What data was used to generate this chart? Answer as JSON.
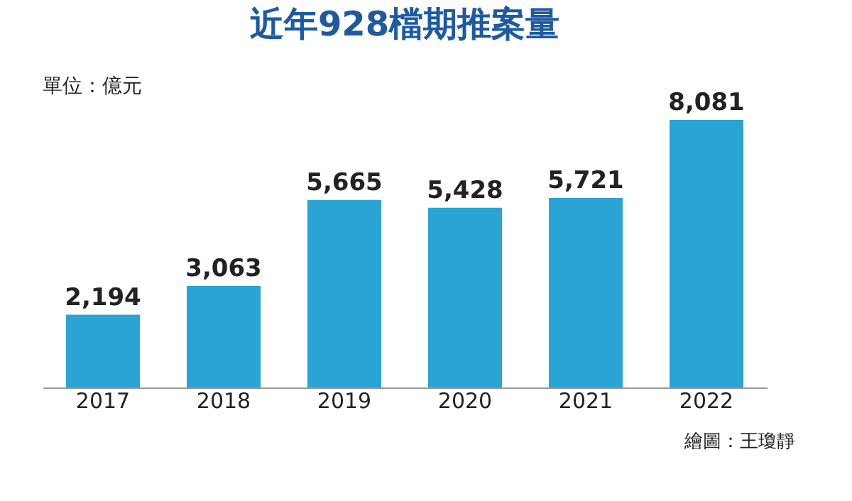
{
  "chart_data": {
    "type": "bar",
    "title": "近年928檔期推案量",
    "subtitle": "單位：億元",
    "categories": [
      "2017",
      "2018",
      "2019",
      "2020",
      "2021",
      "2022"
    ],
    "values": [
      2194,
      3063,
      5665,
      5428,
      5721,
      8081
    ],
    "value_labels": [
      "2,194",
      "3,063",
      "5,665",
      "5,428",
      "5,721",
      "8,081"
    ],
    "color": "#2aa3d5",
    "grid": false,
    "annotations": [
      "繪圖：王瓊靜"
    ]
  }
}
